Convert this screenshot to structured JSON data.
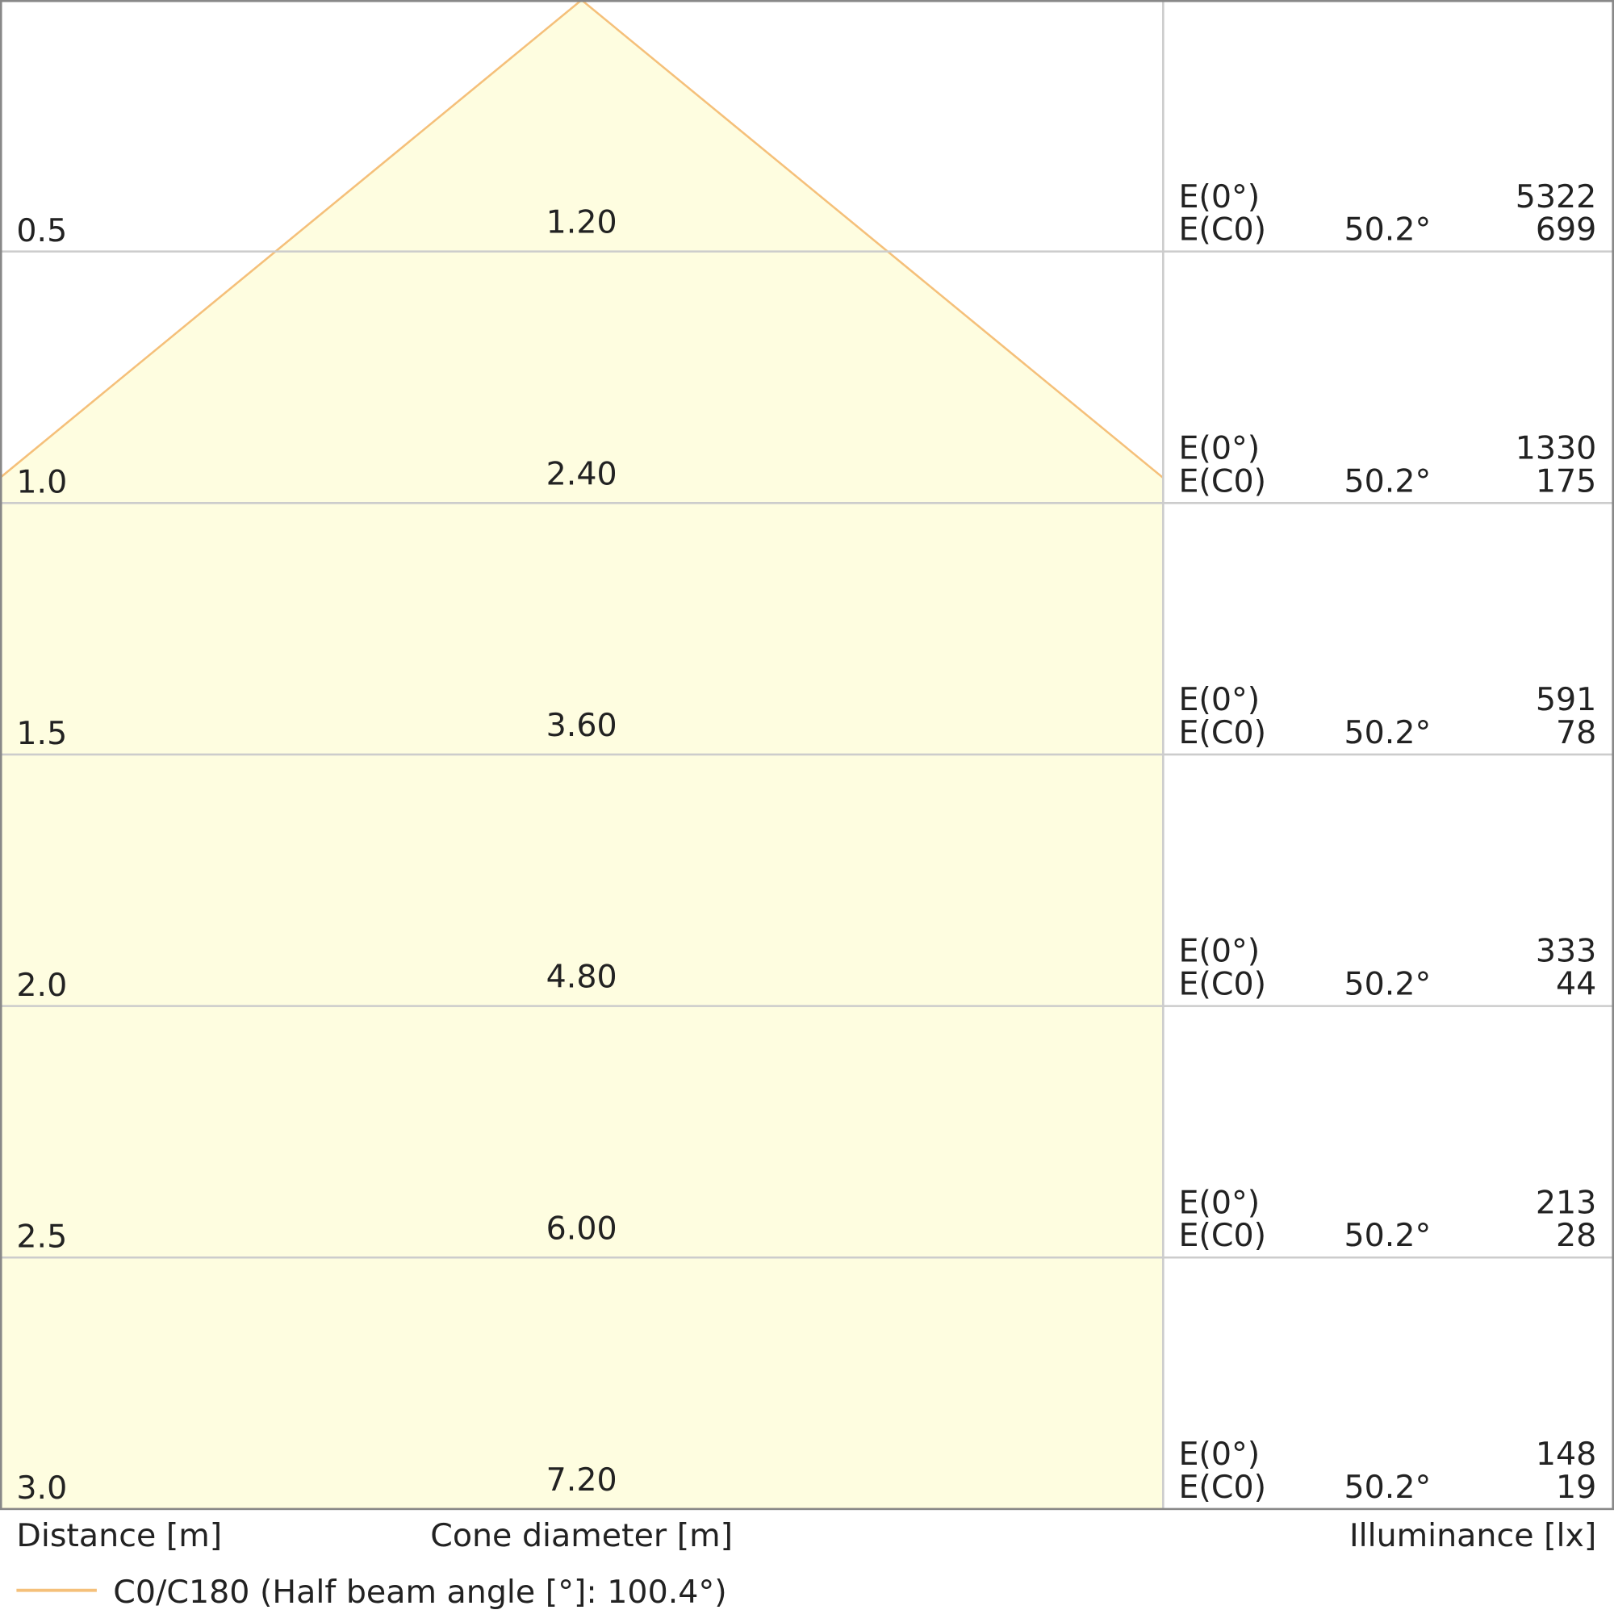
{
  "chart_data": {
    "type": "cone",
    "distances": [
      {
        "value": 0.5,
        "label": "0.5"
      },
      {
        "value": 1.0,
        "label": "1.0"
      },
      {
        "value": 1.5,
        "label": "1.5"
      },
      {
        "value": 2.0,
        "label": "2.0"
      },
      {
        "value": 2.5,
        "label": "2.5"
      },
      {
        "value": 3.0,
        "label": "3.0"
      }
    ],
    "diameters": [
      1.2,
      2.4,
      3.6,
      4.8,
      6.0,
      7.2
    ],
    "diameter_labels": [
      "1.20",
      "2.40",
      "3.60",
      "4.80",
      "6.00",
      "7.20"
    ],
    "e0_label": "E(0°)",
    "ec0_label": "E(C0)",
    "angle": {
      "value": 50.2,
      "label": "50.2°"
    },
    "e0_values": [
      5322,
      1330,
      591,
      333,
      213,
      148
    ],
    "ec0_values": [
      699,
      175,
      78,
      44,
      28,
      19
    ],
    "distance_axis_label": "Distance [m]",
    "diameter_axis_label": "Cone diameter [m]",
    "illuminance_axis_label": "Illuminance [lx]",
    "legend": {
      "name": "C0/C180 (Half beam angle [°]: 100.4°)",
      "color": "#f5c07a"
    },
    "fill_color": "#fefde0"
  }
}
